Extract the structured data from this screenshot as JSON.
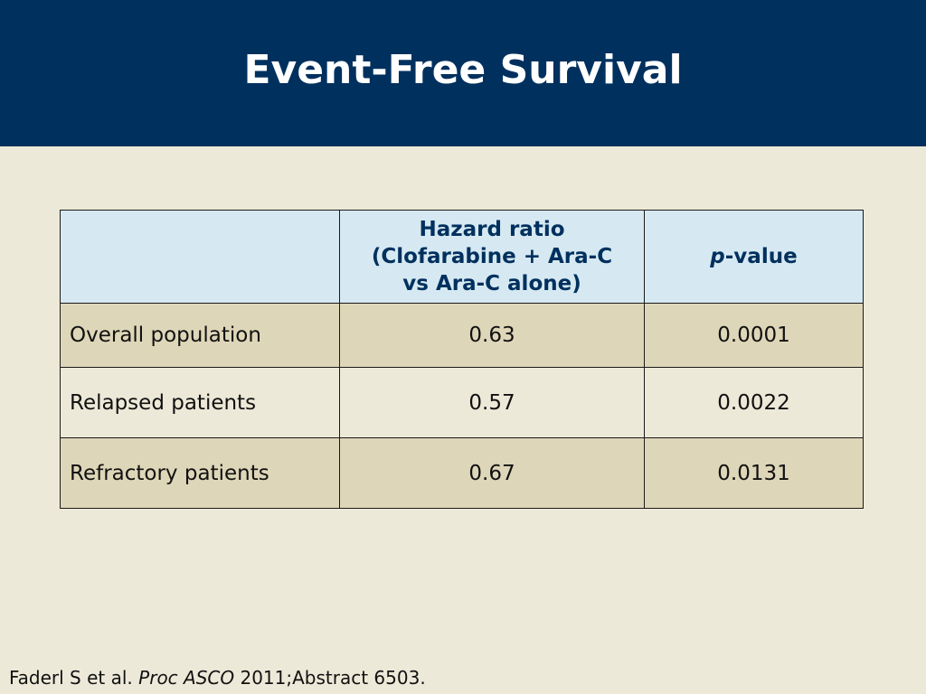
{
  "slide": {
    "title": "Event-Free Survival"
  },
  "table": {
    "header": {
      "corner": "",
      "hazard_line1": "Hazard ratio",
      "hazard_line2": "(Clofarabine + Ara-C",
      "hazard_line3": "vs Ara-C alone)",
      "pvalue_italic": "p",
      "pvalue_rest": "-value"
    },
    "rows": [
      {
        "label": "Overall population",
        "hazard_ratio": "0.63",
        "p_value": "0.0001"
      },
      {
        "label": "Relapsed patients",
        "hazard_ratio": "0.57",
        "p_value": "0.0022"
      },
      {
        "label": "Refractory patients",
        "hazard_ratio": "0.67",
        "p_value": "0.0131"
      }
    ]
  },
  "citation": {
    "authors": "Faderl S et al. ",
    "journal": "Proc ASCO",
    "details": " 2011;Abstract 6503."
  },
  "colors": {
    "header_band": "#00305E",
    "background": "#EDE9D8",
    "table_header_bg": "#D6E9F2",
    "row_shaded_bg": "#DED6B8",
    "header_text": "#00305E"
  }
}
